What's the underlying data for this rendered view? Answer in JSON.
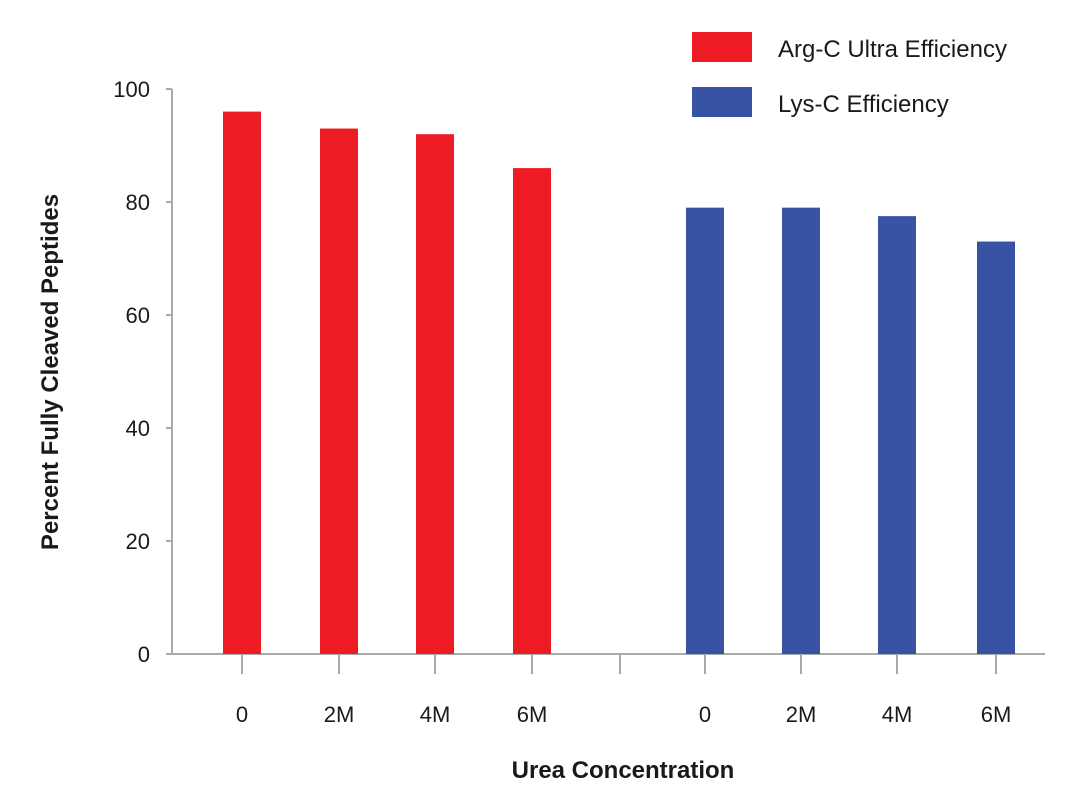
{
  "chart_data": {
    "type": "bar",
    "title": "",
    "xlabel": "Urea Concentration",
    "ylabel": "Percent Fully Cleaved Peptides",
    "ylim": [
      0,
      100
    ],
    "yticks": [
      "0",
      "20",
      "40",
      "60",
      "80",
      "100"
    ],
    "legend_position": "top-right",
    "grid": false,
    "groups": [
      {
        "series_name": "Arg-C Ultra Efficiency",
        "color": "#ed1c24",
        "categories": [
          "0",
          "2M",
          "4M",
          "6M"
        ],
        "values": [
          96,
          93,
          92,
          86
        ]
      },
      {
        "series_name": "Lys-C Efficiency",
        "color": "#3953a4",
        "categories": [
          "0",
          "2M",
          "4M",
          "6M"
        ],
        "values": [
          79,
          79,
          77.5,
          73
        ]
      }
    ]
  }
}
